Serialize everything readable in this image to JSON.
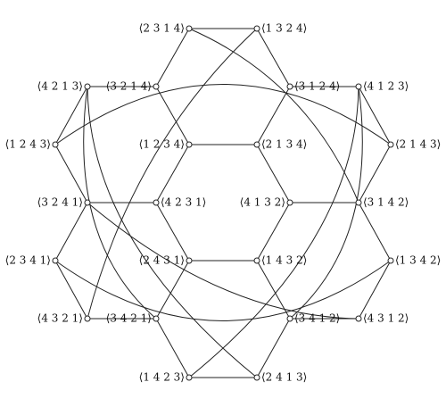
{
  "diagram": {
    "nodes": [
      {
        "id": "n2314",
        "label": "⟨2 3 1 4⟩"
      },
      {
        "id": "n1324",
        "label": "⟨1 3 2 4⟩"
      },
      {
        "id": "n3214",
        "label": "⟨3 2 1 4⟩"
      },
      {
        "id": "n3124",
        "label": "⟨3 1 2 4⟩"
      },
      {
        "id": "n4213",
        "label": "⟨4 2 1 3⟩"
      },
      {
        "id": "n4123",
        "label": "⟨4 1 2 3⟩"
      },
      {
        "id": "n1243",
        "label": "⟨1 2 4 3⟩"
      },
      {
        "id": "n1234",
        "label": "⟨1 2 3 4⟩"
      },
      {
        "id": "n2134",
        "label": "⟨2 1 3 4⟩"
      },
      {
        "id": "n2143",
        "label": "⟨2 1 4 3⟩"
      },
      {
        "id": "n3241",
        "label": "⟨3 2 4 1⟩"
      },
      {
        "id": "n4231",
        "label": "⟨4 2 3 1⟩"
      },
      {
        "id": "n4132",
        "label": "⟨4 1 3 2⟩"
      },
      {
        "id": "n3142",
        "label": "⟨3 1 4 2⟩"
      },
      {
        "id": "n2341",
        "label": "⟨2 3 4 1⟩"
      },
      {
        "id": "n2431",
        "label": "⟨2 4 3 1⟩"
      },
      {
        "id": "n1432",
        "label": "⟨1 4 3 2⟩"
      },
      {
        "id": "n1342",
        "label": "⟨1 3 4 2⟩"
      },
      {
        "id": "n4321",
        "label": "⟨4 3 2 1⟩"
      },
      {
        "id": "n4312",
        "label": "⟨4 3 1 2⟩"
      },
      {
        "id": "n3421",
        "label": "⟨3 4 2 1⟩"
      },
      {
        "id": "n3412",
        "label": "⟨3 4 1 2⟩"
      },
      {
        "id": "n1423",
        "label": "⟨1 4 2 3⟩"
      },
      {
        "id": "n2413",
        "label": "⟨2 4 1 3⟩"
      }
    ],
    "edges": [
      [
        "n2314",
        "n1324"
      ],
      [
        "n4213",
        "n3214"
      ],
      [
        "n3124",
        "n4123"
      ],
      [
        "n1234",
        "n2134"
      ],
      [
        "n3241",
        "n4231"
      ],
      [
        "n4132",
        "n3142"
      ],
      [
        "n2431",
        "n1432"
      ],
      [
        "n4321",
        "n3421"
      ],
      [
        "n3412",
        "n4312"
      ],
      [
        "n1423",
        "n2413"
      ],
      [
        "n4213",
        "n1243"
      ],
      [
        "n1243",
        "n3241"
      ],
      [
        "n3241",
        "n2341"
      ],
      [
        "n2341",
        "n4321"
      ],
      [
        "n4123",
        "n2143"
      ],
      [
        "n2143",
        "n3142"
      ],
      [
        "n3142",
        "n1342"
      ],
      [
        "n1342",
        "n4312"
      ],
      [
        "n1234",
        "n4231"
      ],
      [
        "n4231",
        "n2431"
      ],
      [
        "n2134",
        "n4132"
      ],
      [
        "n4132",
        "n1432"
      ],
      [
        "n3214",
        "n1234"
      ],
      [
        "n3124",
        "n2134"
      ],
      [
        "n3421",
        "n2431"
      ],
      [
        "n3412",
        "n1432"
      ],
      [
        "n2314",
        "n3214"
      ],
      [
        "n1324",
        "n3124"
      ],
      [
        "n3421",
        "n1423"
      ],
      [
        "n3412",
        "n2413"
      ],
      [
        "n2314",
        "n3142"
      ],
      [
        "n1324",
        "n4321"
      ],
      [
        "n1423",
        "n4123"
      ],
      [
        "n2413",
        "n4213"
      ],
      [
        "n3241",
        "n4312"
      ],
      [
        "n4213",
        "n3421"
      ],
      [
        "n4123",
        "n3412"
      ],
      [
        "n1243",
        "n2143"
      ],
      [
        "n2341",
        "n1342"
      ]
    ]
  }
}
